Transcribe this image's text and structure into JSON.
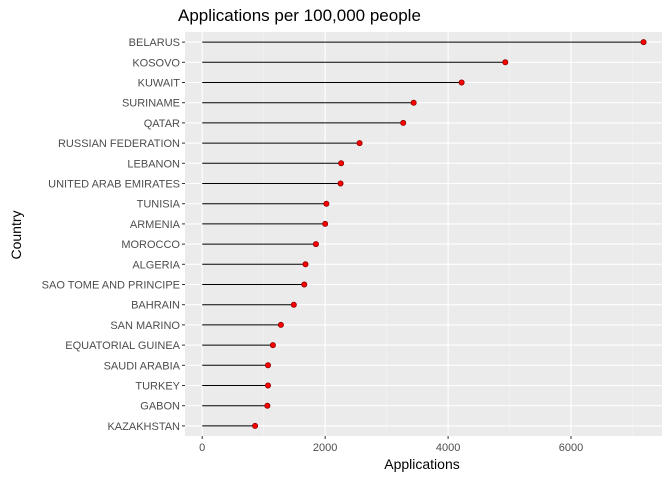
{
  "chart_data": {
    "type": "lollipop",
    "title": "Applications per 100,000 people",
    "xlabel": "Applications",
    "ylabel": "Country",
    "xlim": [
      -280,
      7480
    ],
    "x_ticks": [
      0,
      2000,
      4000,
      6000
    ],
    "grid": true,
    "legend": "none",
    "categories": [
      "BELARUS",
      "KOSOVO",
      "KUWAIT",
      "SURINAME",
      "QATAR",
      "RUSSIAN FEDERATION",
      "LEBANON",
      "UNITED ARAB EMIRATES",
      "TUNISIA",
      "ARMENIA",
      "MOROCCO",
      "ALGERIA",
      "SAO TOME AND PRINCIPE",
      "BAHRAIN",
      "SAN MARINO",
      "EQUATORIAL GUINEA",
      "SAUDI ARABIA",
      "TURKEY",
      "GABON",
      "KAZAKHSTAN"
    ],
    "values": [
      7180,
      4930,
      4220,
      3440,
      3270,
      2560,
      2260,
      2250,
      2020,
      2000,
      1850,
      1680,
      1660,
      1490,
      1280,
      1150,
      1070,
      1070,
      1060,
      860
    ],
    "colors": {
      "panel": "#ebebeb",
      "grid_major": "#ffffff",
      "grid_minor": "#f5f5f5",
      "segment": "#000000",
      "point": "#ff0000",
      "point_outline": "#8b0000",
      "tick_label": "#4d4d4d",
      "tick": "#333333"
    }
  }
}
